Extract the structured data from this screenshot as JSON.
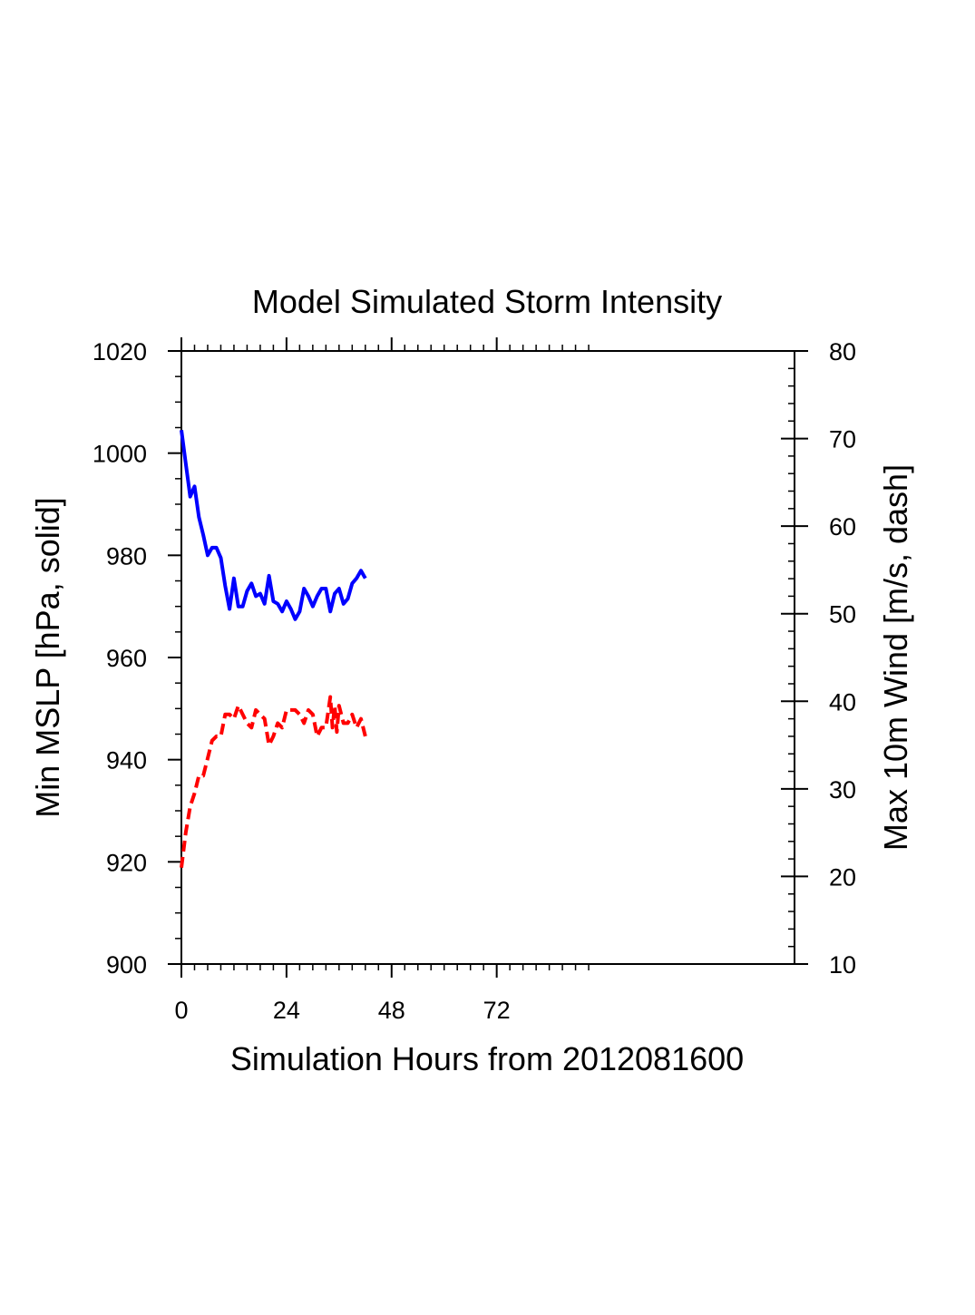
{
  "chart_data": {
    "type": "line",
    "title": "Model Simulated Storm Intensity",
    "xlabel": "Simulation Hours from 2012081600",
    "ylabel_left": "Min MSLP  [hPa, solid]",
    "ylabel_right": "Max 10m Wind  [m/s, dash]",
    "xlim": [
      0,
      140
    ],
    "ylim_left": [
      900,
      1020
    ],
    "ylim_right": [
      10,
      80
    ],
    "x_ticks": [
      0,
      24,
      48,
      72
    ],
    "y_ticks_left": [
      900,
      920,
      940,
      960,
      980,
      1000,
      1020
    ],
    "y_ticks_right": [
      10,
      20,
      30,
      40,
      50,
      60,
      70,
      80
    ],
    "grid": false,
    "series": [
      {
        "axis": "left",
        "style": "solid",
        "color": "#0000ff",
        "x": [
          0,
          1,
          2,
          3,
          4,
          5,
          6,
          7,
          8,
          9,
          10,
          11,
          12,
          13,
          14,
          15,
          16,
          17,
          18,
          19,
          20,
          21,
          22,
          23,
          24,
          25,
          26,
          27,
          28,
          29,
          30,
          31,
          32,
          33,
          34,
          35,
          36,
          37,
          38,
          39,
          40,
          41,
          42
        ],
        "values": [
          1004.5,
          998,
          991.5,
          993.5,
          987.5,
          984,
          980,
          981.5,
          981.5,
          979.5,
          974,
          969.5,
          975.5,
          970,
          970,
          973,
          974.5,
          972,
          972.5,
          970.5,
          976,
          971,
          970.5,
          969,
          971,
          969.5,
          967.5,
          969,
          973.5,
          972,
          970,
          972,
          973.5,
          973.5,
          969,
          972.5,
          973.5,
          970.5,
          971.5,
          974.5,
          975.5,
          977,
          975.5
        ]
      },
      {
        "axis": "right",
        "style": "dash",
        "color": "#ff0000",
        "x": [
          0,
          1,
          2,
          3,
          4,
          5,
          6,
          7,
          8,
          9,
          10,
          11,
          12,
          13,
          14,
          15,
          16,
          17,
          18,
          19,
          20,
          21,
          22,
          23,
          24,
          25,
          26,
          27,
          28,
          29,
          30,
          31,
          32,
          33,
          34,
          34.5,
          35,
          35.5,
          36,
          37,
          38,
          39,
          40,
          41,
          42
        ],
        "values": [
          21,
          25,
          28,
          29.5,
          31.5,
          31.5,
          33.5,
          35.5,
          36,
          36,
          38.5,
          38.5,
          38,
          39.5,
          38.5,
          37.5,
          37,
          39,
          38.5,
          38,
          35,
          36,
          37.5,
          37,
          39,
          39,
          39,
          38.5,
          37.5,
          39,
          38.5,
          36,
          37,
          37,
          40.5,
          37,
          39.5,
          36.5,
          39.5,
          37.5,
          37.5,
          38.5,
          37,
          38,
          36
        ]
      }
    ]
  }
}
